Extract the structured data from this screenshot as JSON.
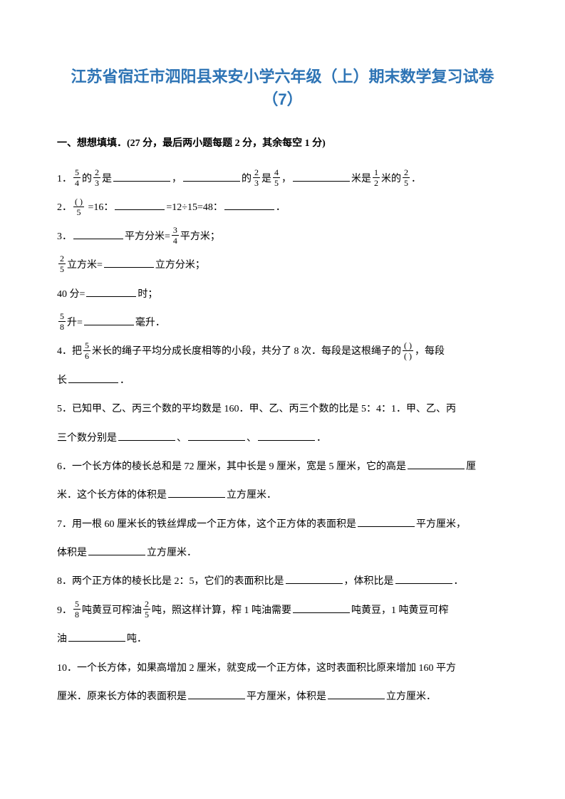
{
  "title": "江苏省宿迁市泗阳县来安小学六年级（上）期末数学复习试卷（7）",
  "sectionHeader": "一、想想填填．(27 分，最后两小题每题 2 分，其余每空 1 分)",
  "q1": {
    "p1a": "1．",
    "f1n": "5",
    "f1d": "4",
    "p1b": "的",
    "f2n": "2",
    "f2d": "3",
    "p1c": "是",
    "p1d": "，",
    "p1e": "的",
    "f3n": "2",
    "f3d": "3",
    "p1f": "是",
    "f4n": "4",
    "f4d": "5",
    "p1g": "，",
    "p1h": "米是",
    "f5n": "1",
    "f5d": "2",
    "p1i": "米的",
    "f6n": "2",
    "f6d": "5",
    "p1j": "．"
  },
  "q2": {
    "p1": "2．",
    "fn": "( )",
    "fd": "5",
    "p2": " =16：",
    "p3": "=12÷15=48：",
    "p4": "．"
  },
  "q3": {
    "p1": "3．",
    "p2": "平方分米=",
    "fn": "3",
    "fd": "4",
    "p3": "平方米；"
  },
  "q3b": {
    "fn": "2",
    "fd": "5",
    "p1": "立方米=",
    "p2": "立方分米；"
  },
  "q3c": {
    "p1": "40 分=",
    "p2": "时；"
  },
  "q3d": {
    "fn": "5",
    "fd": "8",
    "p1": "升=",
    "p2": "毫升．"
  },
  "q4": {
    "p1": "4．把",
    "fn": "5",
    "fd": "6",
    "p2": "米长的绳子平均分成长度相等的小段，共分了 8 次．每段是这根绳子的",
    "f2n": "( )",
    "f2d": "( )",
    "p3": "，每段",
    "p4": "长",
    "p5": "．"
  },
  "q5": {
    "p1": "5．已知甲、乙、丙三个数的平均数是 160．甲、乙、丙三个数的比是 5：4：1．甲、乙、丙",
    "p2": "三个数分别是",
    "p3": "、",
    "p4": "、",
    "p5": "．"
  },
  "q6": {
    "p1": "6．一个长方体的棱长总和是 72 厘米，其中长是 9 厘米，宽是 5 厘米，它的高是",
    "p2": "厘",
    "p3": "米．这个长方体的体积是",
    "p4": "立方厘米．"
  },
  "q7": {
    "p1": "7．用一根 60 厘米长的铁丝焊成一个正方体，这个正方体的表面积是",
    "p2": "平方厘米，",
    "p3": "体积是",
    "p4": "立方厘米．"
  },
  "q8": {
    "p1": "8．两个正方体的棱长比是 2：5，它们的表面积比是",
    "p2": "，体积比是",
    "p3": "．"
  },
  "q9": {
    "p1": "9．",
    "fn": "5",
    "fd": "8",
    "p2": "吨黄豆可榨油",
    "f2n": "2",
    "f2d": "5",
    "p3": "吨，照这样计算，榨 1 吨油需要",
    "p4": "吨黄豆，1 吨黄豆可榨",
    "p5": "油",
    "p6": "吨．"
  },
  "q10": {
    "p1": "10．一个长方体，如果高增加 2 厘米，就变成一个正方体，这时表面积比原来增加 160 平方",
    "p2": "厘米．原来长方体的表面积是",
    "p3": "平方厘米，体积是",
    "p4": "立方厘米．"
  }
}
